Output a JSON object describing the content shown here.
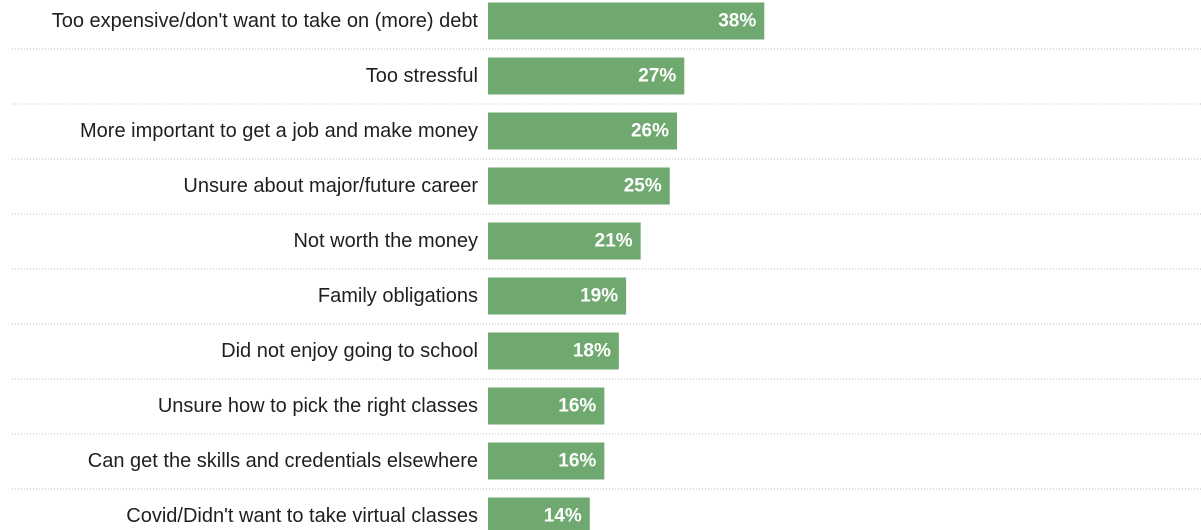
{
  "chart_data": {
    "type": "bar",
    "orientation": "horizontal",
    "categories": [
      "Too expensive/don't want to take on (more) debt",
      "Too stressful",
      "More important to get a job and make money",
      "Unsure about major/future career",
      "Not worth the money",
      "Family obligations",
      "Did not enjoy going to school",
      "Unsure how to pick the right classes",
      "Can get the skills and credentials elsewhere",
      "Covid/Didn't want to take virtual classes"
    ],
    "values": [
      38,
      27,
      26,
      25,
      21,
      19,
      18,
      16,
      16,
      14
    ],
    "value_labels": [
      "38%",
      "27%",
      "26%",
      "25%",
      "21%",
      "19%",
      "18%",
      "16%",
      "16%",
      "14%"
    ],
    "value_unit": "%",
    "bar_color": "#6fa96f",
    "value_label_color": "#ffffff",
    "label_color": "#1f1f1f",
    "grid": true,
    "grid_style": "dotted",
    "grid_color": "#bdbdbd",
    "legend": "none"
  }
}
